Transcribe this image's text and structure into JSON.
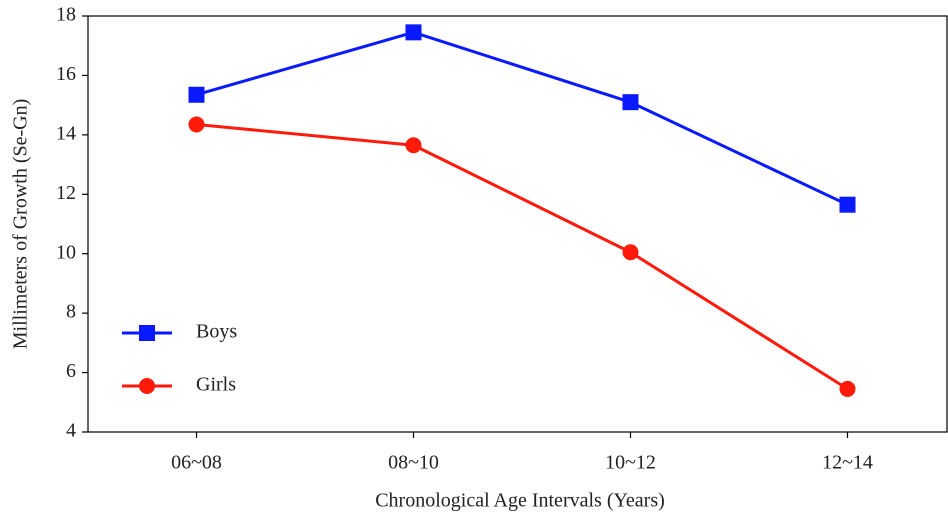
{
  "chart_data": {
    "type": "line",
    "xlabel": "Chronological Age Intervals (Years)",
    "ylabel": "Millimeters of Growth (Se-Gn)",
    "categories": [
      "06~08",
      "08~10",
      "10~12",
      "12~14"
    ],
    "series": [
      {
        "name": "Boys",
        "color": "#0a1aff",
        "marker": "square",
        "values": [
          15.35,
          17.45,
          15.1,
          11.65
        ]
      },
      {
        "name": "Girls",
        "color": "#ff1a0a",
        "marker": "circle",
        "values": [
          14.35,
          13.65,
          10.05,
          5.45
        ]
      }
    ],
    "ylim": [
      4,
      18
    ],
    "yticks": [
      4,
      6,
      8,
      10,
      12,
      14,
      16,
      18
    ],
    "legend": "lower left"
  }
}
